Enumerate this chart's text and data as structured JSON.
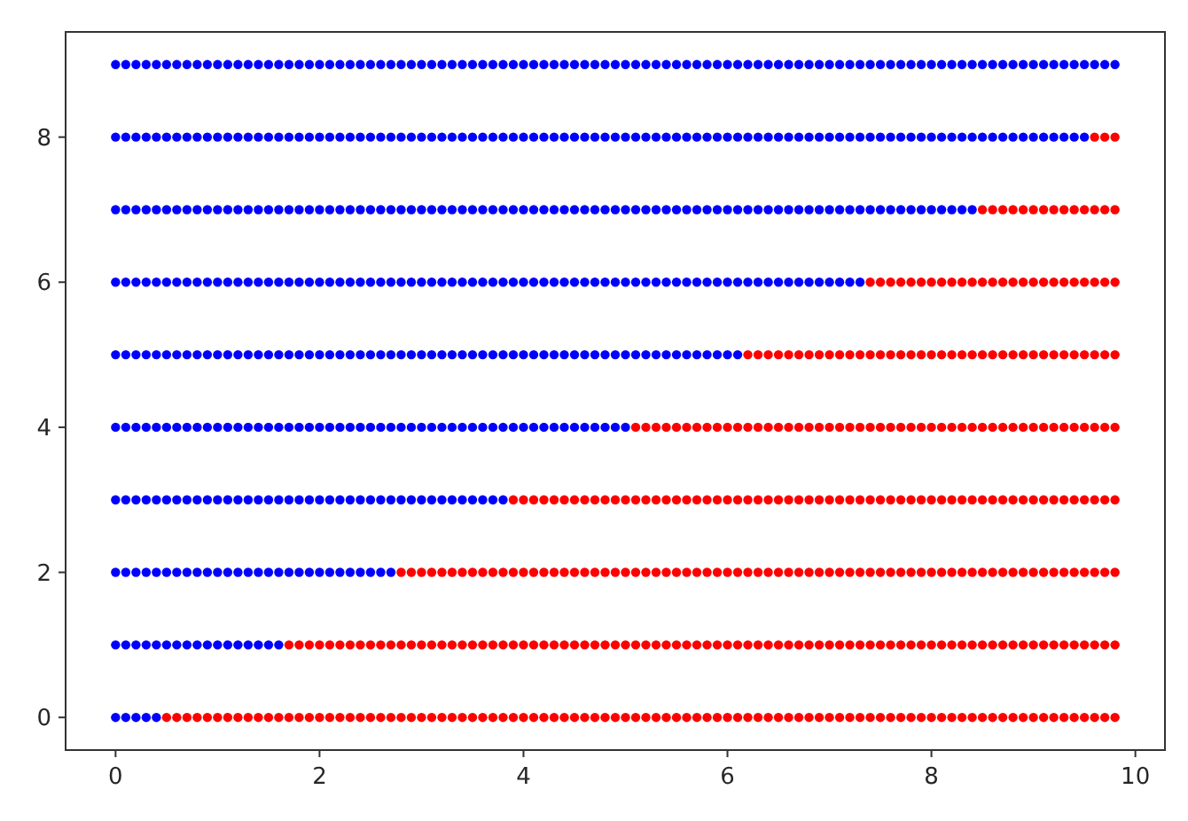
{
  "chart_data": {
    "type": "scatter",
    "marker": "circle",
    "grid": false,
    "xlim": [
      -0.49,
      10.29
    ],
    "ylim": [
      -0.45,
      9.45
    ],
    "xticks": [
      0,
      2,
      4,
      6,
      8,
      10
    ],
    "yticks": [
      0,
      2,
      4,
      6,
      8
    ],
    "series": [
      {
        "color": "#0000ff",
        "x": [
          0,
          0.1,
          0.2,
          0.3,
          0.4
        ],
        "values": [
          0,
          0,
          0,
          0,
          0
        ]
      },
      {
        "color": "#ff0000",
        "x": [
          0.5,
          0.6,
          0.7,
          0.8,
          0.9,
          1,
          1.1,
          1.2,
          1.3,
          1.4,
          1.5,
          1.6,
          1.7,
          1.8,
          1.9,
          2,
          2.1,
          2.2,
          2.3,
          2.4,
          2.5,
          2.6,
          2.7,
          2.8,
          2.9,
          3,
          3.1,
          3.2,
          3.3,
          3.4,
          3.5,
          3.6,
          3.7,
          3.8,
          3.9,
          4,
          4.1,
          4.2,
          4.3,
          4.4,
          4.5,
          4.6,
          4.7,
          4.8,
          4.9,
          5,
          5.1,
          5.2,
          5.3,
          5.4,
          5.5,
          5.6,
          5.7,
          5.8,
          5.9,
          6,
          6.1,
          6.2,
          6.3,
          6.4,
          6.5,
          6.6,
          6.7,
          6.8,
          6.9,
          7,
          7.1,
          7.2,
          7.3,
          7.4,
          7.5,
          7.6,
          7.7,
          7.8,
          7.9,
          8,
          8.1,
          8.2,
          8.3,
          8.4,
          8.5,
          8.6,
          8.7,
          8.8,
          8.9,
          9,
          9.1,
          9.2,
          9.3,
          9.4,
          9.5,
          9.6,
          9.7,
          9.8
        ],
        "values": [
          0,
          0,
          0,
          0,
          0,
          0,
          0,
          0,
          0,
          0,
          0,
          0,
          0,
          0,
          0,
          0,
          0,
          0,
          0,
          0,
          0,
          0,
          0,
          0,
          0,
          0,
          0,
          0,
          0,
          0,
          0,
          0,
          0,
          0,
          0,
          0,
          0,
          0,
          0,
          0,
          0,
          0,
          0,
          0,
          0,
          0,
          0,
          0,
          0,
          0,
          0,
          0,
          0,
          0,
          0,
          0,
          0,
          0,
          0,
          0,
          0,
          0,
          0,
          0,
          0,
          0,
          0,
          0,
          0,
          0,
          0,
          0,
          0,
          0,
          0,
          0,
          0,
          0,
          0,
          0,
          0,
          0,
          0,
          0,
          0,
          0,
          0,
          0,
          0,
          0,
          0,
          0,
          0,
          0
        ]
      },
      {
        "color": "#0000ff",
        "x": [
          0,
          0.1,
          0.2,
          0.3,
          0.4,
          0.5,
          0.6,
          0.7,
          0.8,
          0.9,
          1,
          1.1,
          1.2,
          1.3,
          1.4,
          1.5,
          1.6
        ],
        "values": [
          1,
          1,
          1,
          1,
          1,
          1,
          1,
          1,
          1,
          1,
          1,
          1,
          1,
          1,
          1,
          1,
          1
        ]
      },
      {
        "color": "#ff0000",
        "x": [
          1.7,
          1.8,
          1.9,
          2,
          2.1,
          2.2,
          2.3,
          2.4,
          2.5,
          2.6,
          2.7,
          2.8,
          2.9,
          3,
          3.1,
          3.2,
          3.3,
          3.4,
          3.5,
          3.6,
          3.7,
          3.8,
          3.9,
          4,
          4.1,
          4.2,
          4.3,
          4.4,
          4.5,
          4.6,
          4.7,
          4.8,
          4.9,
          5,
          5.1,
          5.2,
          5.3,
          5.4,
          5.5,
          5.6,
          5.7,
          5.8,
          5.9,
          6,
          6.1,
          6.2,
          6.3,
          6.4,
          6.5,
          6.6,
          6.7,
          6.8,
          6.9,
          7,
          7.1,
          7.2,
          7.3,
          7.4,
          7.5,
          7.6,
          7.7,
          7.8,
          7.9,
          8,
          8.1,
          8.2,
          8.3,
          8.4,
          8.5,
          8.6,
          8.7,
          8.8,
          8.9,
          9,
          9.1,
          9.2,
          9.3,
          9.4,
          9.5,
          9.6,
          9.7,
          9.8
        ],
        "values": [
          1,
          1,
          1,
          1,
          1,
          1,
          1,
          1,
          1,
          1,
          1,
          1,
          1,
          1,
          1,
          1,
          1,
          1,
          1,
          1,
          1,
          1,
          1,
          1,
          1,
          1,
          1,
          1,
          1,
          1,
          1,
          1,
          1,
          1,
          1,
          1,
          1,
          1,
          1,
          1,
          1,
          1,
          1,
          1,
          1,
          1,
          1,
          1,
          1,
          1,
          1,
          1,
          1,
          1,
          1,
          1,
          1,
          1,
          1,
          1,
          1,
          1,
          1,
          1,
          1,
          1,
          1,
          1,
          1,
          1,
          1,
          1,
          1,
          1,
          1,
          1,
          1,
          1,
          1,
          1,
          1,
          1
        ]
      },
      {
        "color": "#0000ff",
        "x": [
          0,
          0.1,
          0.2,
          0.3,
          0.4,
          0.5,
          0.6,
          0.7,
          0.8,
          0.9,
          1,
          1.1,
          1.2,
          1.3,
          1.4,
          1.5,
          1.6,
          1.7,
          1.8,
          1.9,
          2,
          2.1,
          2.2,
          2.3,
          2.4,
          2.5,
          2.6,
          2.7
        ],
        "values": [
          2,
          2,
          2,
          2,
          2,
          2,
          2,
          2,
          2,
          2,
          2,
          2,
          2,
          2,
          2,
          2,
          2,
          2,
          2,
          2,
          2,
          2,
          2,
          2,
          2,
          2,
          2,
          2
        ]
      },
      {
        "color": "#ff0000",
        "x": [
          2.8,
          2.9,
          3,
          3.1,
          3.2,
          3.3,
          3.4,
          3.5,
          3.6,
          3.7,
          3.8,
          3.9,
          4,
          4.1,
          4.2,
          4.3,
          4.4,
          4.5,
          4.6,
          4.7,
          4.8,
          4.9,
          5,
          5.1,
          5.2,
          5.3,
          5.4,
          5.5,
          5.6,
          5.7,
          5.8,
          5.9,
          6,
          6.1,
          6.2,
          6.3,
          6.4,
          6.5,
          6.6,
          6.7,
          6.8,
          6.9,
          7,
          7.1,
          7.2,
          7.3,
          7.4,
          7.5,
          7.6,
          7.7,
          7.8,
          7.9,
          8,
          8.1,
          8.2,
          8.3,
          8.4,
          8.5,
          8.6,
          8.7,
          8.8,
          8.9,
          9,
          9.1,
          9.2,
          9.3,
          9.4,
          9.5,
          9.6,
          9.7,
          9.8
        ],
        "values": [
          2,
          2,
          2,
          2,
          2,
          2,
          2,
          2,
          2,
          2,
          2,
          2,
          2,
          2,
          2,
          2,
          2,
          2,
          2,
          2,
          2,
          2,
          2,
          2,
          2,
          2,
          2,
          2,
          2,
          2,
          2,
          2,
          2,
          2,
          2,
          2,
          2,
          2,
          2,
          2,
          2,
          2,
          2,
          2,
          2,
          2,
          2,
          2,
          2,
          2,
          2,
          2,
          2,
          2,
          2,
          2,
          2,
          2,
          2,
          2,
          2,
          2,
          2,
          2,
          2,
          2,
          2,
          2,
          2,
          2,
          2
        ]
      },
      {
        "color": "#0000ff",
        "x": [
          0,
          0.1,
          0.2,
          0.3,
          0.4,
          0.5,
          0.6,
          0.7,
          0.8,
          0.9,
          1,
          1.1,
          1.2,
          1.3,
          1.4,
          1.5,
          1.6,
          1.7,
          1.8,
          1.9,
          2,
          2.1,
          2.2,
          2.3,
          2.4,
          2.5,
          2.6,
          2.7,
          2.8,
          2.9,
          3,
          3.1,
          3.2,
          3.3,
          3.4,
          3.5,
          3.6,
          3.7,
          3.8
        ],
        "values": [
          3,
          3,
          3,
          3,
          3,
          3,
          3,
          3,
          3,
          3,
          3,
          3,
          3,
          3,
          3,
          3,
          3,
          3,
          3,
          3,
          3,
          3,
          3,
          3,
          3,
          3,
          3,
          3,
          3,
          3,
          3,
          3,
          3,
          3,
          3,
          3,
          3,
          3,
          3
        ]
      },
      {
        "color": "#ff0000",
        "x": [
          3.9,
          4,
          4.1,
          4.2,
          4.3,
          4.4,
          4.5,
          4.6,
          4.7,
          4.8,
          4.9,
          5,
          5.1,
          5.2,
          5.3,
          5.4,
          5.5,
          5.6,
          5.7,
          5.8,
          5.9,
          6,
          6.1,
          6.2,
          6.3,
          6.4,
          6.5,
          6.6,
          6.7,
          6.8,
          6.9,
          7,
          7.1,
          7.2,
          7.3,
          7.4,
          7.5,
          7.6,
          7.7,
          7.8,
          7.9,
          8,
          8.1,
          8.2,
          8.3,
          8.4,
          8.5,
          8.6,
          8.7,
          8.8,
          8.9,
          9,
          9.1,
          9.2,
          9.3,
          9.4,
          9.5,
          9.6,
          9.7,
          9.8
        ],
        "values": [
          3,
          3,
          3,
          3,
          3,
          3,
          3,
          3,
          3,
          3,
          3,
          3,
          3,
          3,
          3,
          3,
          3,
          3,
          3,
          3,
          3,
          3,
          3,
          3,
          3,
          3,
          3,
          3,
          3,
          3,
          3,
          3,
          3,
          3,
          3,
          3,
          3,
          3,
          3,
          3,
          3,
          3,
          3,
          3,
          3,
          3,
          3,
          3,
          3,
          3,
          3,
          3,
          3,
          3,
          3,
          3,
          3,
          3,
          3,
          3
        ]
      },
      {
        "color": "#0000ff",
        "x": [
          0,
          0.1,
          0.2,
          0.3,
          0.4,
          0.5,
          0.6,
          0.7,
          0.8,
          0.9,
          1,
          1.1,
          1.2,
          1.3,
          1.4,
          1.5,
          1.6,
          1.7,
          1.8,
          1.9,
          2,
          2.1,
          2.2,
          2.3,
          2.4,
          2.5,
          2.6,
          2.7,
          2.8,
          2.9,
          3,
          3.1,
          3.2,
          3.3,
          3.4,
          3.5,
          3.6,
          3.7,
          3.8,
          3.9,
          4,
          4.1,
          4.2,
          4.3,
          4.4,
          4.5,
          4.6,
          4.7,
          4.8,
          4.9,
          5
        ],
        "values": [
          4,
          4,
          4,
          4,
          4,
          4,
          4,
          4,
          4,
          4,
          4,
          4,
          4,
          4,
          4,
          4,
          4,
          4,
          4,
          4,
          4,
          4,
          4,
          4,
          4,
          4,
          4,
          4,
          4,
          4,
          4,
          4,
          4,
          4,
          4,
          4,
          4,
          4,
          4,
          4,
          4,
          4,
          4,
          4,
          4,
          4,
          4,
          4,
          4,
          4,
          4
        ]
      },
      {
        "color": "#ff0000",
        "x": [
          5.1,
          5.2,
          5.3,
          5.4,
          5.5,
          5.6,
          5.7,
          5.8,
          5.9,
          6,
          6.1,
          6.2,
          6.3,
          6.4,
          6.5,
          6.6,
          6.7,
          6.8,
          6.9,
          7,
          7.1,
          7.2,
          7.3,
          7.4,
          7.5,
          7.6,
          7.7,
          7.8,
          7.9,
          8,
          8.1,
          8.2,
          8.3,
          8.4,
          8.5,
          8.6,
          8.7,
          8.8,
          8.9,
          9,
          9.1,
          9.2,
          9.3,
          9.4,
          9.5,
          9.6,
          9.7,
          9.8
        ],
        "values": [
          4,
          4,
          4,
          4,
          4,
          4,
          4,
          4,
          4,
          4,
          4,
          4,
          4,
          4,
          4,
          4,
          4,
          4,
          4,
          4,
          4,
          4,
          4,
          4,
          4,
          4,
          4,
          4,
          4,
          4,
          4,
          4,
          4,
          4,
          4,
          4,
          4,
          4,
          4,
          4,
          4,
          4,
          4,
          4,
          4,
          4,
          4,
          4
        ]
      },
      {
        "color": "#0000ff",
        "x": [
          0,
          0.1,
          0.2,
          0.3,
          0.4,
          0.5,
          0.6,
          0.7,
          0.8,
          0.9,
          1,
          1.1,
          1.2,
          1.3,
          1.4,
          1.5,
          1.6,
          1.7,
          1.8,
          1.9,
          2,
          2.1,
          2.2,
          2.3,
          2.4,
          2.5,
          2.6,
          2.7,
          2.8,
          2.9,
          3,
          3.1,
          3.2,
          3.3,
          3.4,
          3.5,
          3.6,
          3.7,
          3.8,
          3.9,
          4,
          4.1,
          4.2,
          4.3,
          4.4,
          4.5,
          4.6,
          4.7,
          4.8,
          4.9,
          5,
          5.1,
          5.2,
          5.3,
          5.4,
          5.5,
          5.6,
          5.7,
          5.8,
          5.9,
          6,
          6.1
        ],
        "values": [
          5,
          5,
          5,
          5,
          5,
          5,
          5,
          5,
          5,
          5,
          5,
          5,
          5,
          5,
          5,
          5,
          5,
          5,
          5,
          5,
          5,
          5,
          5,
          5,
          5,
          5,
          5,
          5,
          5,
          5,
          5,
          5,
          5,
          5,
          5,
          5,
          5,
          5,
          5,
          5,
          5,
          5,
          5,
          5,
          5,
          5,
          5,
          5,
          5,
          5,
          5,
          5,
          5,
          5,
          5,
          5,
          5,
          5,
          5,
          5,
          5,
          5
        ]
      },
      {
        "color": "#ff0000",
        "x": [
          6.2,
          6.3,
          6.4,
          6.5,
          6.6,
          6.7,
          6.8,
          6.9,
          7,
          7.1,
          7.2,
          7.3,
          7.4,
          7.5,
          7.6,
          7.7,
          7.8,
          7.9,
          8,
          8.1,
          8.2,
          8.3,
          8.4,
          8.5,
          8.6,
          8.7,
          8.8,
          8.9,
          9,
          9.1,
          9.2,
          9.3,
          9.4,
          9.5,
          9.6,
          9.7,
          9.8
        ],
        "values": [
          5,
          5,
          5,
          5,
          5,
          5,
          5,
          5,
          5,
          5,
          5,
          5,
          5,
          5,
          5,
          5,
          5,
          5,
          5,
          5,
          5,
          5,
          5,
          5,
          5,
          5,
          5,
          5,
          5,
          5,
          5,
          5,
          5,
          5,
          5,
          5,
          5
        ]
      },
      {
        "color": "#0000ff",
        "x": [
          0,
          0.1,
          0.2,
          0.3,
          0.4,
          0.5,
          0.6,
          0.7,
          0.8,
          0.9,
          1,
          1.1,
          1.2,
          1.3,
          1.4,
          1.5,
          1.6,
          1.7,
          1.8,
          1.9,
          2,
          2.1,
          2.2,
          2.3,
          2.4,
          2.5,
          2.6,
          2.7,
          2.8,
          2.9,
          3,
          3.1,
          3.2,
          3.3,
          3.4,
          3.5,
          3.6,
          3.7,
          3.8,
          3.9,
          4,
          4.1,
          4.2,
          4.3,
          4.4,
          4.5,
          4.6,
          4.7,
          4.8,
          4.9,
          5,
          5.1,
          5.2,
          5.3,
          5.4,
          5.5,
          5.6,
          5.7,
          5.8,
          5.9,
          6,
          6.1,
          6.2,
          6.3,
          6.4,
          6.5,
          6.6,
          6.7,
          6.8,
          6.9,
          7,
          7.1,
          7.2,
          7.3
        ],
        "values": [
          6,
          6,
          6,
          6,
          6,
          6,
          6,
          6,
          6,
          6,
          6,
          6,
          6,
          6,
          6,
          6,
          6,
          6,
          6,
          6,
          6,
          6,
          6,
          6,
          6,
          6,
          6,
          6,
          6,
          6,
          6,
          6,
          6,
          6,
          6,
          6,
          6,
          6,
          6,
          6,
          6,
          6,
          6,
          6,
          6,
          6,
          6,
          6,
          6,
          6,
          6,
          6,
          6,
          6,
          6,
          6,
          6,
          6,
          6,
          6,
          6,
          6,
          6,
          6,
          6,
          6,
          6,
          6,
          6,
          6,
          6,
          6,
          6,
          6
        ]
      },
      {
        "color": "#ff0000",
        "x": [
          7.4,
          7.5,
          7.6,
          7.7,
          7.8,
          7.9,
          8,
          8.1,
          8.2,
          8.3,
          8.4,
          8.5,
          8.6,
          8.7,
          8.8,
          8.9,
          9,
          9.1,
          9.2,
          9.3,
          9.4,
          9.5,
          9.6,
          9.7,
          9.8
        ],
        "values": [
          6,
          6,
          6,
          6,
          6,
          6,
          6,
          6,
          6,
          6,
          6,
          6,
          6,
          6,
          6,
          6,
          6,
          6,
          6,
          6,
          6,
          6,
          6,
          6,
          6
        ]
      },
      {
        "color": "#0000ff",
        "x": [
          0,
          0.1,
          0.2,
          0.3,
          0.4,
          0.5,
          0.6,
          0.7,
          0.8,
          0.9,
          1,
          1.1,
          1.2,
          1.3,
          1.4,
          1.5,
          1.6,
          1.7,
          1.8,
          1.9,
          2,
          2.1,
          2.2,
          2.3,
          2.4,
          2.5,
          2.6,
          2.7,
          2.8,
          2.9,
          3,
          3.1,
          3.2,
          3.3,
          3.4,
          3.5,
          3.6,
          3.7,
          3.8,
          3.9,
          4,
          4.1,
          4.2,
          4.3,
          4.4,
          4.5,
          4.6,
          4.7,
          4.8,
          4.9,
          5,
          5.1,
          5.2,
          5.3,
          5.4,
          5.5,
          5.6,
          5.7,
          5.8,
          5.9,
          6,
          6.1,
          6.2,
          6.3,
          6.4,
          6.5,
          6.6,
          6.7,
          6.8,
          6.9,
          7,
          7.1,
          7.2,
          7.3,
          7.4,
          7.5,
          7.6,
          7.7,
          7.8,
          7.9,
          8,
          8.1,
          8.2,
          8.3,
          8.4
        ],
        "values": [
          7,
          7,
          7,
          7,
          7,
          7,
          7,
          7,
          7,
          7,
          7,
          7,
          7,
          7,
          7,
          7,
          7,
          7,
          7,
          7,
          7,
          7,
          7,
          7,
          7,
          7,
          7,
          7,
          7,
          7,
          7,
          7,
          7,
          7,
          7,
          7,
          7,
          7,
          7,
          7,
          7,
          7,
          7,
          7,
          7,
          7,
          7,
          7,
          7,
          7,
          7,
          7,
          7,
          7,
          7,
          7,
          7,
          7,
          7,
          7,
          7,
          7,
          7,
          7,
          7,
          7,
          7,
          7,
          7,
          7,
          7,
          7,
          7,
          7,
          7,
          7,
          7,
          7,
          7,
          7,
          7,
          7,
          7,
          7,
          7
        ]
      },
      {
        "color": "#ff0000",
        "x": [
          8.5,
          8.6,
          8.7,
          8.8,
          8.9,
          9,
          9.1,
          9.2,
          9.3,
          9.4,
          9.5,
          9.6,
          9.7,
          9.8
        ],
        "values": [
          7,
          7,
          7,
          7,
          7,
          7,
          7,
          7,
          7,
          7,
          7,
          7,
          7,
          7
        ]
      },
      {
        "color": "#0000ff",
        "x": [
          0,
          0.1,
          0.2,
          0.3,
          0.4,
          0.5,
          0.6,
          0.7,
          0.8,
          0.9,
          1,
          1.1,
          1.2,
          1.3,
          1.4,
          1.5,
          1.6,
          1.7,
          1.8,
          1.9,
          2,
          2.1,
          2.2,
          2.3,
          2.4,
          2.5,
          2.6,
          2.7,
          2.8,
          2.9,
          3,
          3.1,
          3.2,
          3.3,
          3.4,
          3.5,
          3.6,
          3.7,
          3.8,
          3.9,
          4,
          4.1,
          4.2,
          4.3,
          4.4,
          4.5,
          4.6,
          4.7,
          4.8,
          4.9,
          5,
          5.1,
          5.2,
          5.3,
          5.4,
          5.5,
          5.6,
          5.7,
          5.8,
          5.9,
          6,
          6.1,
          6.2,
          6.3,
          6.4,
          6.5,
          6.6,
          6.7,
          6.8,
          6.9,
          7,
          7.1,
          7.2,
          7.3,
          7.4,
          7.5,
          7.6,
          7.7,
          7.8,
          7.9,
          8,
          8.1,
          8.2,
          8.3,
          8.4,
          8.5,
          8.6,
          8.7,
          8.8,
          8.9,
          9,
          9.1,
          9.2,
          9.3,
          9.4,
          9.5
        ],
        "values": [
          8,
          8,
          8,
          8,
          8,
          8,
          8,
          8,
          8,
          8,
          8,
          8,
          8,
          8,
          8,
          8,
          8,
          8,
          8,
          8,
          8,
          8,
          8,
          8,
          8,
          8,
          8,
          8,
          8,
          8,
          8,
          8,
          8,
          8,
          8,
          8,
          8,
          8,
          8,
          8,
          8,
          8,
          8,
          8,
          8,
          8,
          8,
          8,
          8,
          8,
          8,
          8,
          8,
          8,
          8,
          8,
          8,
          8,
          8,
          8,
          8,
          8,
          8,
          8,
          8,
          8,
          8,
          8,
          8,
          8,
          8,
          8,
          8,
          8,
          8,
          8,
          8,
          8,
          8,
          8,
          8,
          8,
          8,
          8,
          8,
          8,
          8,
          8,
          8,
          8,
          8,
          8,
          8,
          8,
          8,
          8
        ]
      },
      {
        "color": "#ff0000",
        "x": [
          9.6,
          9.7,
          9.8
        ],
        "values": [
          8,
          8,
          8
        ]
      },
      {
        "color": "#0000ff",
        "x": [
          0,
          0.1,
          0.2,
          0.3,
          0.4,
          0.5,
          0.6,
          0.7,
          0.8,
          0.9,
          1,
          1.1,
          1.2,
          1.3,
          1.4,
          1.5,
          1.6,
          1.7,
          1.8,
          1.9,
          2,
          2.1,
          2.2,
          2.3,
          2.4,
          2.5,
          2.6,
          2.7,
          2.8,
          2.9,
          3,
          3.1,
          3.2,
          3.3,
          3.4,
          3.5,
          3.6,
          3.7,
          3.8,
          3.9,
          4,
          4.1,
          4.2,
          4.3,
          4.4,
          4.5,
          4.6,
          4.7,
          4.8,
          4.9,
          5,
          5.1,
          5.2,
          5.3,
          5.4,
          5.5,
          5.6,
          5.7,
          5.8,
          5.9,
          6,
          6.1,
          6.2,
          6.3,
          6.4,
          6.5,
          6.6,
          6.7,
          6.8,
          6.9,
          7,
          7.1,
          7.2,
          7.3,
          7.4,
          7.5,
          7.6,
          7.7,
          7.8,
          7.9,
          8,
          8.1,
          8.2,
          8.3,
          8.4,
          8.5,
          8.6,
          8.7,
          8.8,
          8.9,
          9,
          9.1,
          9.2,
          9.3,
          9.4,
          9.5,
          9.6,
          9.7,
          9.8
        ],
        "values": [
          9,
          9,
          9,
          9,
          9,
          9,
          9,
          9,
          9,
          9,
          9,
          9,
          9,
          9,
          9,
          9,
          9,
          9,
          9,
          9,
          9,
          9,
          9,
          9,
          9,
          9,
          9,
          9,
          9,
          9,
          9,
          9,
          9,
          9,
          9,
          9,
          9,
          9,
          9,
          9,
          9,
          9,
          9,
          9,
          9,
          9,
          9,
          9,
          9,
          9,
          9,
          9,
          9,
          9,
          9,
          9,
          9,
          9,
          9,
          9,
          9,
          9,
          9,
          9,
          9,
          9,
          9,
          9,
          9,
          9,
          9,
          9,
          9,
          9,
          9,
          9,
          9,
          9,
          9,
          9,
          9,
          9,
          9,
          9,
          9,
          9,
          9,
          9,
          9,
          9,
          9,
          9,
          9,
          9,
          9,
          9,
          9,
          9,
          9
        ]
      }
    ]
  }
}
